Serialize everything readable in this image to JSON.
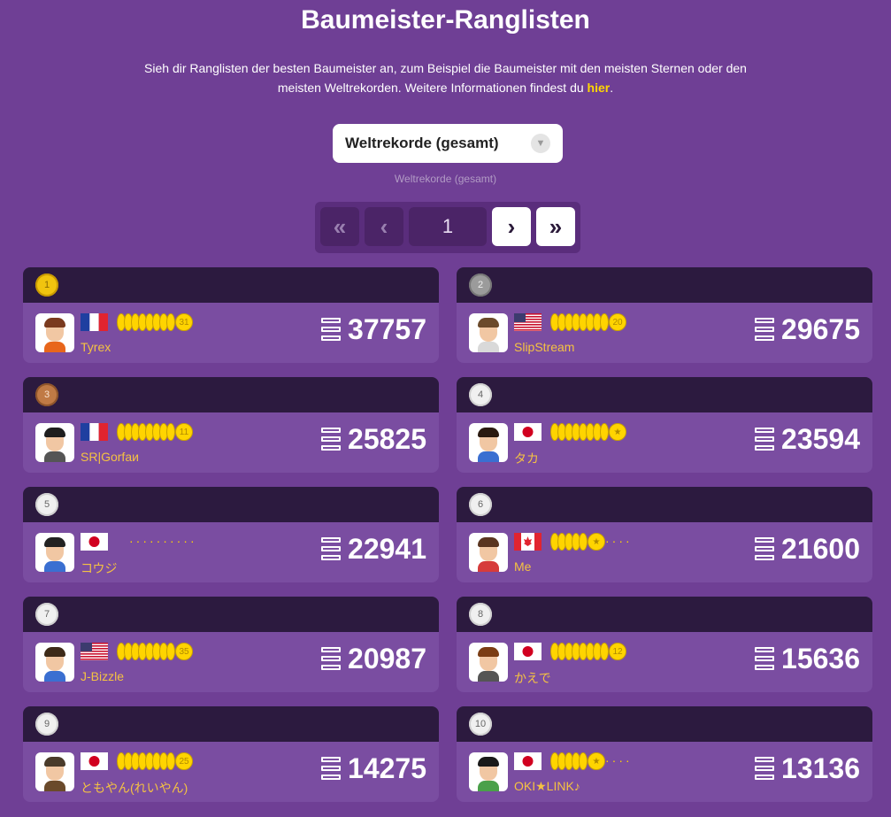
{
  "header": {
    "title": "Baumeister-Ranglisten",
    "desc_before": "Sieh dir Ranglisten der besten Baumeister an, zum Beispiel die Baumeister mit den meisten Sternen oder den meisten Weltrekorden. Weitere Informationen findest du ",
    "desc_link": "hier",
    "desc_after": "."
  },
  "select": {
    "value": "Weltrekorde (gesamt)",
    "caption": "Weltrekorde (gesamt)"
  },
  "pager": {
    "first": "«",
    "prev": "‹",
    "page": "1",
    "next": "›",
    "last": "»"
  },
  "entries": [
    {
      "rank": "1",
      "country": "France",
      "medals": "31",
      "name": "Tyrex",
      "score": "37757"
    },
    {
      "rank": "2",
      "country": "United States",
      "medals": "20",
      "name": "SlipStream",
      "score": "29675"
    },
    {
      "rank": "3",
      "country": "France",
      "medals": "11",
      "name": "SR|Gorfaи",
      "score": "25825"
    },
    {
      "rank": "4",
      "country": "Japan",
      "medals": "★",
      "name": "タカ",
      "score": "23594"
    },
    {
      "rank": "5",
      "country": "Japan",
      "medals": "",
      "name": "コウジ",
      "score": "22941"
    },
    {
      "rank": "6",
      "country": "Canada",
      "medals": "★",
      "name": "Me",
      "score": "21600"
    },
    {
      "rank": "7",
      "country": "United States",
      "medals": "35",
      "name": "J-Bizzle",
      "score": "20987"
    },
    {
      "rank": "8",
      "country": "Japan",
      "medals": "12",
      "name": "かえで",
      "score": "15636"
    },
    {
      "rank": "9",
      "country": "Japan",
      "medals": "25",
      "name": "ともやん(れいやん)",
      "score": "14275"
    },
    {
      "rank": "10",
      "country": "Japan",
      "medals": "★",
      "name": "OKI★LINK♪",
      "score": "13136"
    }
  ],
  "colors": {
    "background": "#6f3f95",
    "card": "#7a4da1",
    "card_header": "#2c1a3f",
    "name": "#f5c242",
    "link": "#ffd700"
  }
}
